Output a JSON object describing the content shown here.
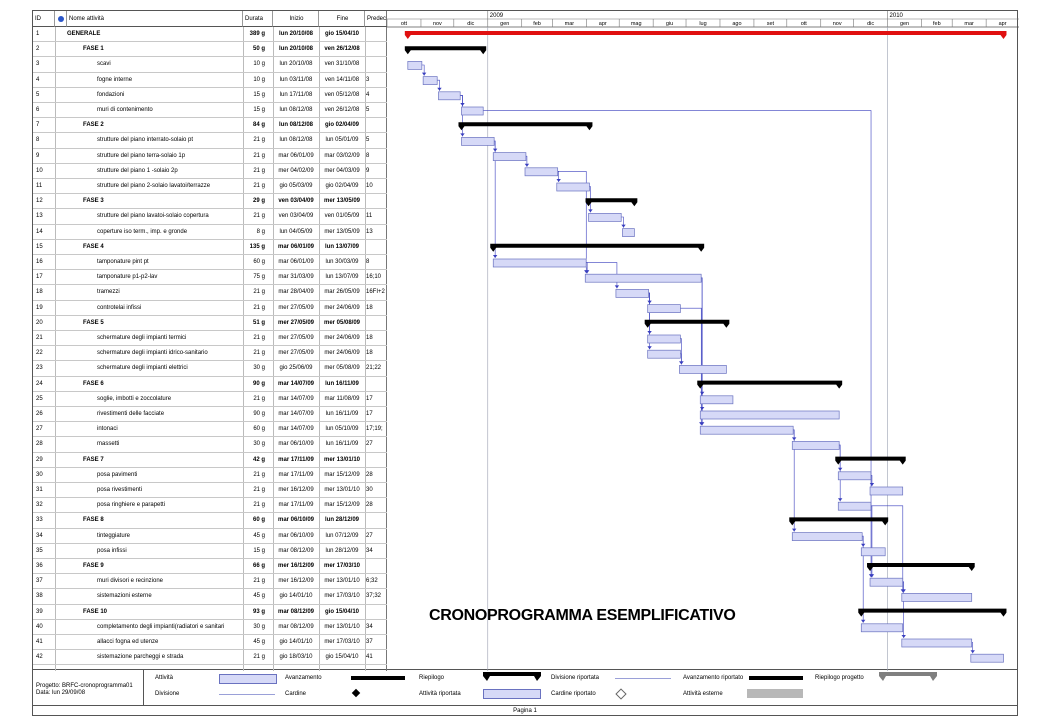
{
  "headers": {
    "id": "ID",
    "name": "Nome attività",
    "duration": "Durata",
    "start": "Inizio",
    "end": "Fine",
    "pred": "Predec"
  },
  "info_icon": "info-icon",
  "timescale": {
    "years": [
      {
        "label": "2009",
        "date": "2009-01-01"
      },
      {
        "label": "2010",
        "date": "2010-01-01"
      }
    ],
    "months": [
      {
        "label": "ott",
        "start": "2008-10-01"
      },
      {
        "label": "nov",
        "start": "2008-11-01"
      },
      {
        "label": "dic",
        "start": "2008-12-01"
      },
      {
        "label": "gen",
        "start": "2009-01-01"
      },
      {
        "label": "feb",
        "start": "2009-02-01"
      },
      {
        "label": "mar",
        "start": "2009-03-01"
      },
      {
        "label": "apr",
        "start": "2009-04-01"
      },
      {
        "label": "mag",
        "start": "2009-05-01"
      },
      {
        "label": "giu",
        "start": "2009-06-01"
      },
      {
        "label": "lug",
        "start": "2009-07-01"
      },
      {
        "label": "ago",
        "start": "2009-08-01"
      },
      {
        "label": "set",
        "start": "2009-09-01"
      },
      {
        "label": "ott",
        "start": "2009-10-01"
      },
      {
        "label": "nov",
        "start": "2009-11-01"
      },
      {
        "label": "dic",
        "start": "2009-12-01"
      },
      {
        "label": "gen",
        "start": "2010-01-01"
      },
      {
        "label": "feb",
        "start": "2010-02-01"
      },
      {
        "label": "mar",
        "start": "2010-03-01"
      },
      {
        "label": "apr",
        "start": "2010-04-01"
      }
    ],
    "range": [
      "2008-10-01",
      "2010-05-01"
    ]
  },
  "chart_data": {
    "type": "table",
    "tasks": [
      {
        "id": "1",
        "name": "GENERALE",
        "duration": "389 g",
        "start": "lun 20/10/08",
        "end": "gio 15/04/10",
        "pred": "",
        "level": 0,
        "kind": "project",
        "s": "2008-10-20",
        "e": "2010-04-15"
      },
      {
        "id": "2",
        "name": "FASE 1",
        "duration": "50 g",
        "start": "lun 20/10/08",
        "end": "ven 26/12/08",
        "pred": "",
        "level": 1,
        "kind": "summary",
        "s": "2008-10-20",
        "e": "2008-12-26"
      },
      {
        "id": "3",
        "name": "scavi",
        "duration": "10 g",
        "start": "lun 20/10/08",
        "end": "ven 31/10/08",
        "pred": "",
        "level": 2,
        "kind": "task",
        "s": "2008-10-20",
        "e": "2008-10-31"
      },
      {
        "id": "4",
        "name": "fogne interne",
        "duration": "10 g",
        "start": "lun 03/11/08",
        "end": "ven 14/11/08",
        "pred": "3",
        "level": 2,
        "kind": "task",
        "s": "2008-11-03",
        "e": "2008-11-14"
      },
      {
        "id": "5",
        "name": "fondazioni",
        "duration": "15 g",
        "start": "lun 17/11/08",
        "end": "ven 05/12/08",
        "pred": "4",
        "level": 2,
        "kind": "task",
        "s": "2008-11-17",
        "e": "2008-12-05"
      },
      {
        "id": "6",
        "name": "muri di contenimento",
        "duration": "15 g",
        "start": "lun 08/12/08",
        "end": "ven 26/12/08",
        "pred": "5",
        "level": 2,
        "kind": "task",
        "s": "2008-12-08",
        "e": "2008-12-26"
      },
      {
        "id": "7",
        "name": "FASE 2",
        "duration": "84 g",
        "start": "lun 08/12/08",
        "end": "gio 02/04/09",
        "pred": "",
        "level": 1,
        "kind": "summary",
        "s": "2008-12-08",
        "e": "2009-04-02"
      },
      {
        "id": "8",
        "name": "strutture del piano interrato-solaio pt",
        "duration": "21 g",
        "start": "lun 08/12/08",
        "end": "lun 05/01/09",
        "pred": "5",
        "level": 2,
        "kind": "task",
        "s": "2008-12-08",
        "e": "2009-01-05"
      },
      {
        "id": "9",
        "name": "strutture del piano terra-solaio 1p",
        "duration": "21 g",
        "start": "mar 06/01/09",
        "end": "mar 03/02/09",
        "pred": "8",
        "level": 2,
        "kind": "task",
        "s": "2009-01-06",
        "e": "2009-02-03"
      },
      {
        "id": "10",
        "name": "strutture del piano 1 -solaio 2p",
        "duration": "21 g",
        "start": "mer 04/02/09",
        "end": "mer 04/03/09",
        "pred": "9",
        "level": 2,
        "kind": "task",
        "s": "2009-02-04",
        "e": "2009-03-04"
      },
      {
        "id": "11",
        "name": "strutture del piano 2-solaio lavatoi/terrazze",
        "duration": "21 g",
        "start": "gio 05/03/09",
        "end": "gio 02/04/09",
        "pred": "10",
        "level": 2,
        "kind": "task",
        "s": "2009-03-05",
        "e": "2009-04-02"
      },
      {
        "id": "12",
        "name": "FASE 3",
        "duration": "29 g",
        "start": "ven 03/04/09",
        "end": "mer 13/05/09",
        "pred": "",
        "level": 1,
        "kind": "summary",
        "s": "2009-04-03",
        "e": "2009-05-13"
      },
      {
        "id": "13",
        "name": "strutture del piano lavatoi-solaio copertura",
        "duration": "21 g",
        "start": "ven 03/04/09",
        "end": "ven 01/05/09",
        "pred": "11",
        "level": 2,
        "kind": "task",
        "s": "2009-04-03",
        "e": "2009-05-01"
      },
      {
        "id": "14",
        "name": "coperture iso term., imp. e gronde",
        "duration": "8 g",
        "start": "lun 04/05/09",
        "end": "mer 13/05/09",
        "pred": "13",
        "level": 2,
        "kind": "task",
        "s": "2009-05-04",
        "e": "2009-05-13"
      },
      {
        "id": "15",
        "name": "FASE 4",
        "duration": "135 g",
        "start": "mar 06/01/09",
        "end": "lun 13/07/09",
        "pred": "",
        "level": 1,
        "kind": "summary",
        "s": "2009-01-06",
        "e": "2009-07-13"
      },
      {
        "id": "16",
        "name": "tamponature pint pt",
        "duration": "60 g",
        "start": "mar 06/01/09",
        "end": "lun 30/03/09",
        "pred": "8",
        "level": 2,
        "kind": "task",
        "s": "2009-01-06",
        "e": "2009-03-30"
      },
      {
        "id": "17",
        "name": "tamponature p1-p2-lav",
        "duration": "75 g",
        "start": "mar 31/03/09",
        "end": "lun 13/07/09",
        "pred": "16;10",
        "level": 2,
        "kind": "task",
        "s": "2009-03-31",
        "e": "2009-07-13"
      },
      {
        "id": "18",
        "name": "tramezzi",
        "duration": "21 g",
        "start": "mar 28/04/09",
        "end": "mar 26/05/09",
        "pred": "16FI+2",
        "level": 2,
        "kind": "task",
        "s": "2009-04-28",
        "e": "2009-05-26"
      },
      {
        "id": "19",
        "name": "controtelai infissi",
        "duration": "21 g",
        "start": "mer 27/05/09",
        "end": "mer 24/06/09",
        "pred": "18",
        "level": 2,
        "kind": "task",
        "s": "2009-05-27",
        "e": "2009-06-24"
      },
      {
        "id": "20",
        "name": "FASE 5",
        "duration": "51 g",
        "start": "mer 27/05/09",
        "end": "mer 05/08/09",
        "pred": "",
        "level": 1,
        "kind": "summary",
        "s": "2009-05-27",
        "e": "2009-08-05"
      },
      {
        "id": "21",
        "name": "schermature degli impianti termici",
        "duration": "21 g",
        "start": "mer 27/05/09",
        "end": "mer 24/06/09",
        "pred": "18",
        "level": 2,
        "kind": "task",
        "s": "2009-05-27",
        "e": "2009-06-24"
      },
      {
        "id": "22",
        "name": "schermature degli impianti idrico-sanitario",
        "duration": "21 g",
        "start": "mer 27/05/09",
        "end": "mer 24/06/09",
        "pred": "18",
        "level": 2,
        "kind": "task",
        "s": "2009-05-27",
        "e": "2009-06-24"
      },
      {
        "id": "23",
        "name": "schermature degli impianti elettrici",
        "duration": "30 g",
        "start": "gio 25/06/09",
        "end": "mer 05/08/09",
        "pred": "21;22",
        "level": 2,
        "kind": "task",
        "s": "2009-06-25",
        "e": "2009-08-05"
      },
      {
        "id": "24",
        "name": "FASE 6",
        "duration": "90 g",
        "start": "mar 14/07/09",
        "end": "lun 16/11/09",
        "pred": "",
        "level": 1,
        "kind": "summary",
        "s": "2009-07-14",
        "e": "2009-11-16"
      },
      {
        "id": "25",
        "name": "soglie, imbotti e zoccolature",
        "duration": "21 g",
        "start": "mar 14/07/09",
        "end": "mar 11/08/09",
        "pred": "17",
        "level": 2,
        "kind": "task",
        "s": "2009-07-14",
        "e": "2009-08-11"
      },
      {
        "id": "26",
        "name": "rivestimenti delle facciate",
        "duration": "90 g",
        "start": "mar 14/07/09",
        "end": "lun 16/11/09",
        "pred": "17",
        "level": 2,
        "kind": "task",
        "s": "2009-07-14",
        "e": "2009-11-16"
      },
      {
        "id": "27",
        "name": "intonaci",
        "duration": "60 g",
        "start": "mar 14/07/09",
        "end": "lun 05/10/09",
        "pred": "17;19;",
        "level": 2,
        "kind": "task",
        "s": "2009-07-14",
        "e": "2009-10-05"
      },
      {
        "id": "28",
        "name": "massetti",
        "duration": "30 g",
        "start": "mar 06/10/09",
        "end": "lun 16/11/09",
        "pred": "27",
        "level": 2,
        "kind": "task",
        "s": "2009-10-06",
        "e": "2009-11-16"
      },
      {
        "id": "29",
        "name": "FASE 7",
        "duration": "42 g",
        "start": "mar 17/11/09",
        "end": "mer 13/01/10",
        "pred": "",
        "level": 1,
        "kind": "summary",
        "s": "2009-11-17",
        "e": "2010-01-13"
      },
      {
        "id": "30",
        "name": "posa pavimenti",
        "duration": "21 g",
        "start": "mar 17/11/09",
        "end": "mar 15/12/09",
        "pred": "28",
        "level": 2,
        "kind": "task",
        "s": "2009-11-17",
        "e": "2009-12-15"
      },
      {
        "id": "31",
        "name": "posa  rivestimenti",
        "duration": "21 g",
        "start": "mer 16/12/09",
        "end": "mer 13/01/10",
        "pred": "30",
        "level": 2,
        "kind": "task",
        "s": "2009-12-16",
        "e": "2010-01-13"
      },
      {
        "id": "32",
        "name": "posa ringhiere e parapetti",
        "duration": "21 g",
        "start": "mar 17/11/09",
        "end": "mar 15/12/09",
        "pred": "28",
        "level": 2,
        "kind": "task",
        "s": "2009-11-17",
        "e": "2009-12-15"
      },
      {
        "id": "33",
        "name": "FASE 8",
        "duration": "60 g",
        "start": "mar 06/10/09",
        "end": "lun 28/12/09",
        "pred": "",
        "level": 1,
        "kind": "summary",
        "s": "2009-10-06",
        "e": "2009-12-28"
      },
      {
        "id": "34",
        "name": "tinteggiature",
        "duration": "45 g",
        "start": "mar 06/10/09",
        "end": "lun 07/12/09",
        "pred": "27",
        "level": 2,
        "kind": "task",
        "s": "2009-10-06",
        "e": "2009-12-07"
      },
      {
        "id": "35",
        "name": "posa infissi",
        "duration": "15 g",
        "start": "mar 08/12/09",
        "end": "lun 28/12/09",
        "pred": "34",
        "level": 2,
        "kind": "task",
        "s": "2009-12-08",
        "e": "2009-12-28"
      },
      {
        "id": "36",
        "name": "FASE 9",
        "duration": "66 g",
        "start": "mer 16/12/09",
        "end": "mer 17/03/10",
        "pred": "",
        "level": 1,
        "kind": "summary",
        "s": "2009-12-16",
        "e": "2010-03-17"
      },
      {
        "id": "37",
        "name": "muri divisori e recinzione",
        "duration": "21 g",
        "start": "mer 16/12/09",
        "end": "mer 13/01/10",
        "pred": "6;32",
        "level": 2,
        "kind": "task",
        "s": "2009-12-16",
        "e": "2010-01-13"
      },
      {
        "id": "38",
        "name": "sistemazioni esterne",
        "duration": "45 g",
        "start": "gio 14/01/10",
        "end": "mer 17/03/10",
        "pred": "37;32",
        "level": 2,
        "kind": "task",
        "s": "2010-01-14",
        "e": "2010-03-17"
      },
      {
        "id": "39",
        "name": "FASE 10",
        "duration": "93 g",
        "start": "mar 08/12/09",
        "end": "gio 15/04/10",
        "pred": "",
        "level": 1,
        "kind": "summary",
        "s": "2009-12-08",
        "e": "2010-04-15"
      },
      {
        "id": "40",
        "name": "completamento degli impianti(radiatori e sanitari",
        "duration": "30 g",
        "start": "mar 08/12/09",
        "end": "mer 13/01/10",
        "pred": "34",
        "level": 2,
        "kind": "task",
        "s": "2009-12-08",
        "e": "2010-01-13"
      },
      {
        "id": "41",
        "name": "allacci fogna ed utenze",
        "duration": "45 g",
        "start": "gio 14/01/10",
        "end": "mer 17/03/10",
        "pred": "37",
        "level": 2,
        "kind": "task",
        "s": "2010-01-14",
        "e": "2010-03-17"
      },
      {
        "id": "42",
        "name": "sistemazione parcheggi e strada",
        "duration": "21 g",
        "start": "gio 18/03/10",
        "end": "gio 15/04/10",
        "pred": "41",
        "level": 2,
        "kind": "task",
        "s": "2010-03-18",
        "e": "2010-04-15"
      }
    ]
  },
  "watermark": "CRONOPROGRAMMA ESEMPLIFICATIVO",
  "legend": {
    "project": "Progetto: BRFC-cronoprogramma01",
    "date": "Data: lun 29/09/08",
    "items": {
      "attivita": "Attività",
      "divisione": "Divisione",
      "avanzamento": "Avanzamento",
      "cardine": "Cardine",
      "riepilogo": "Riepilogo",
      "attivita_riportata": "Attività riportata",
      "divisione_riportata": "Divisione riportata",
      "cardine_riportato": "Cardine riportato",
      "avanzamento_riportato": "Avanzamento riportato",
      "attivita_esterne": "Attività esterne",
      "riepilogo_progetto": "Riepilogo progetto"
    }
  },
  "footer": "Pagina 1",
  "colors": {
    "task_fill": "#d6d9f7",
    "task_stroke": "#6a72c0",
    "summary": "#000000",
    "project": "#e01010",
    "link": "#3a3fbf"
  }
}
